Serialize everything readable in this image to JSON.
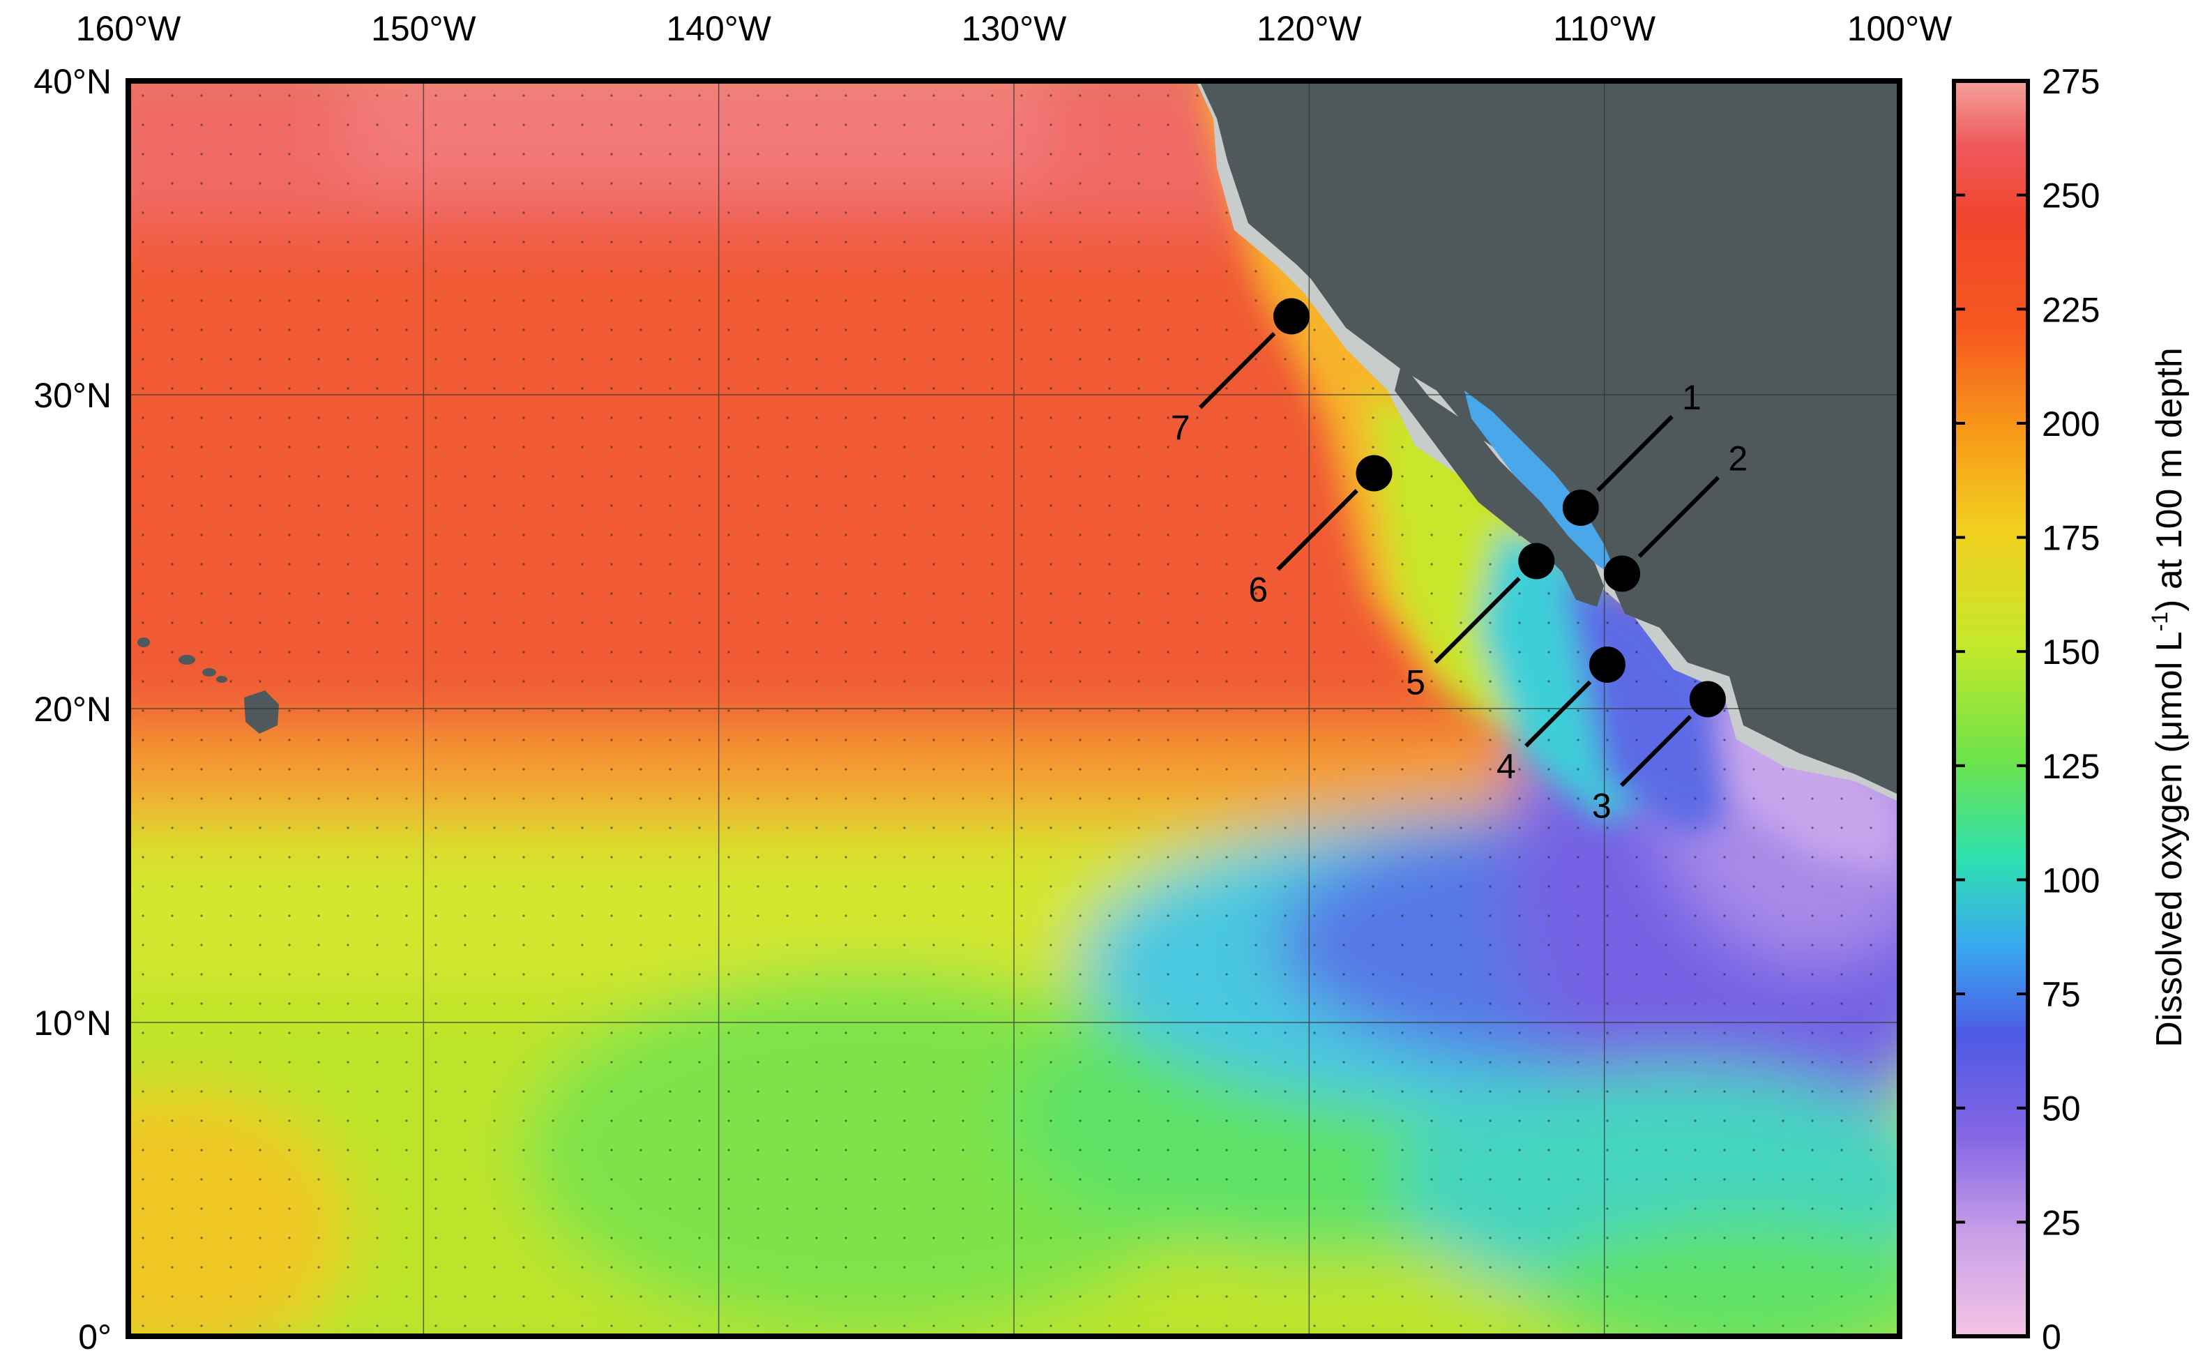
{
  "map": {
    "longitude_labels": [
      "160°W",
      "150°W",
      "140°W",
      "130°W",
      "120°W",
      "110°W",
      "100°W"
    ],
    "latitude_labels": [
      "40°N",
      "30°N",
      "20°N",
      "10°N",
      "0°"
    ],
    "lon_range": [
      -160,
      -100
    ],
    "lat_range": [
      0,
      40
    ],
    "land_color": "#4f585b",
    "coastal_shelf_color": "#c8cccb"
  },
  "colorbar": {
    "title_main": "Dissolved oxygen (μmol L",
    "title_sup": "-1",
    "title_end": ") at 100 m depth",
    "tick_labels": [
      "275",
      "250",
      "225",
      "200",
      "175",
      "150",
      "125",
      "100",
      "75",
      "50",
      "25",
      "0"
    ],
    "range": [
      0,
      275
    ],
    "colors": [
      "#f5c4e4",
      "#c9a0e8",
      "#8466e4",
      "#4c5ae4",
      "#39a8f0",
      "#2ee0b0",
      "#6ee34a",
      "#c4e82a",
      "#f2d120",
      "#f79a18",
      "#f65a1e",
      "#f0442c",
      "#ef5a5e",
      "#f4a29a"
    ]
  },
  "stations": [
    {
      "label": "1",
      "lon": -110.8,
      "lat": 26.4
    },
    {
      "label": "2",
      "lon": -109.4,
      "lat": 24.3
    },
    {
      "label": "3",
      "lon": -106.5,
      "lat": 20.3
    },
    {
      "label": "4",
      "lon": -109.9,
      "lat": 21.4
    },
    {
      "label": "5",
      "lon": -112.3,
      "lat": 24.7
    },
    {
      "label": "6",
      "lon": -117.8,
      "lat": 27.5
    },
    {
      "label": "7",
      "lon": -120.6,
      "lat": 32.5
    }
  ]
}
